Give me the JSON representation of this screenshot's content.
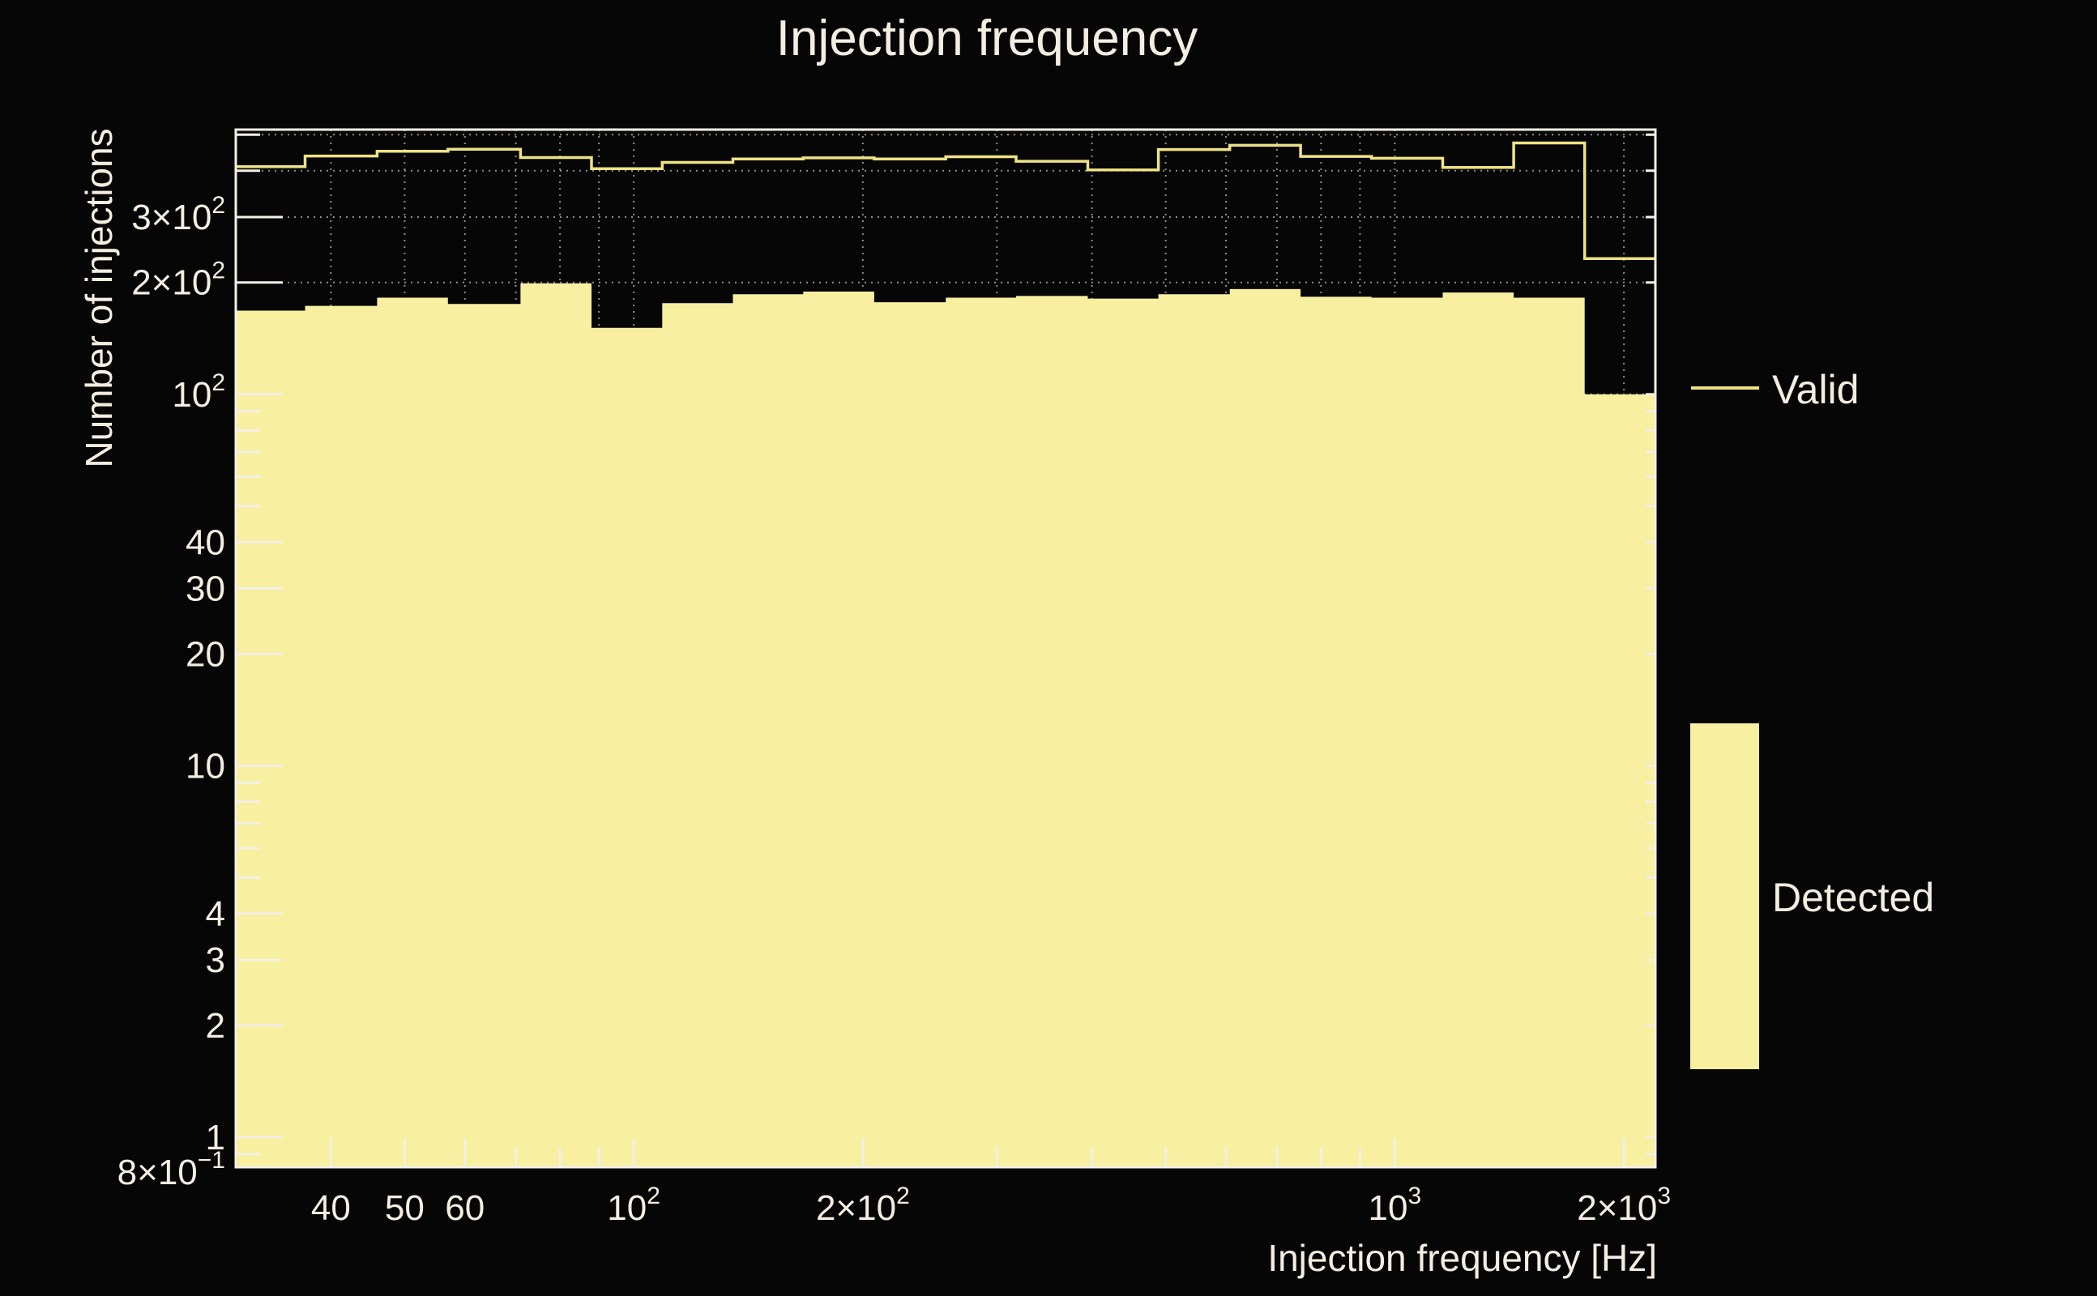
{
  "title": "Injection frequency",
  "colors": {
    "background": "#070606",
    "detected_fill": "#f8efa0",
    "valid_line": "#eee284",
    "text": "#f3eee1",
    "frame": "#f2efe6",
    "gridline": "#8d8d8b"
  },
  "legend": [
    {
      "label": "Valid",
      "marker": "line"
    },
    {
      "label": "Detected",
      "marker": "box"
    }
  ],
  "chart_data": {
    "type": "histogram-step",
    "title": "Injection frequency",
    "xlabel": "Injection frequency [Hz]",
    "ylabel": "Number of injections",
    "x_scale": "log",
    "y_scale": "log",
    "xlim": [
      30,
      2200
    ],
    "ylim": [
      0.83,
      516
    ],
    "grid": true,
    "legend_position": "right",
    "bin_edges_hz": [
      30,
      37,
      46,
      57,
      71,
      88,
      109,
      135,
      167,
      207,
      257,
      318,
      395,
      489,
      607,
      752,
      932,
      1156,
      1433,
      1776,
      2200
    ],
    "series": [
      {
        "name": "Valid",
        "style": "line",
        "values": [
          410,
          438,
          451,
          457,
          434,
          405,
          421,
          430,
          433,
          430,
          436,
          424,
          402,
          456,
          468,
          437,
          432,
          408,
          475,
          232
        ]
      },
      {
        "name": "Detected",
        "style": "fill",
        "values": [
          168,
          173,
          182,
          175,
          199,
          151,
          176,
          186,
          189,
          177,
          182,
          184,
          181,
          186,
          192,
          183,
          182,
          188,
          182,
          100
        ]
      }
    ],
    "x_ticks": [
      {
        "value": 40,
        "label": "40"
      },
      {
        "value": 50,
        "label": "50"
      },
      {
        "value": 60,
        "label": "60"
      },
      {
        "value": 100,
        "label": "10^2"
      },
      {
        "value": 200,
        "label": "2×10^2"
      },
      {
        "value": 1000,
        "label": "10^3"
      },
      {
        "value": 2000,
        "label": "2×10^3"
      }
    ],
    "y_ticks": [
      {
        "value": 300,
        "label": "3×10^2"
      },
      {
        "value": 200,
        "label": "2×10^2"
      },
      {
        "value": 100,
        "label": "10^2"
      },
      {
        "value": 40,
        "label": "40"
      },
      {
        "value": 30,
        "label": "30"
      },
      {
        "value": 20,
        "label": "20"
      },
      {
        "value": 10,
        "label": "10"
      },
      {
        "value": 4,
        "label": "4"
      },
      {
        "value": 3,
        "label": "3"
      },
      {
        "value": 2,
        "label": "2"
      },
      {
        "value": 1,
        "label": "1"
      },
      {
        "value": 0.8,
        "label": "8×10^−1"
      }
    ],
    "x_gridlines": [
      40,
      50,
      60,
      70,
      80,
      90,
      100,
      200,
      300,
      400,
      500,
      600,
      700,
      800,
      900,
      1000,
      2000
    ],
    "y_gridlines": [
      0.9,
      1,
      2,
      3,
      4,
      5,
      6,
      7,
      8,
      9,
      10,
      20,
      30,
      40,
      50,
      60,
      70,
      80,
      90,
      100,
      200,
      300,
      400,
      500
    ]
  }
}
